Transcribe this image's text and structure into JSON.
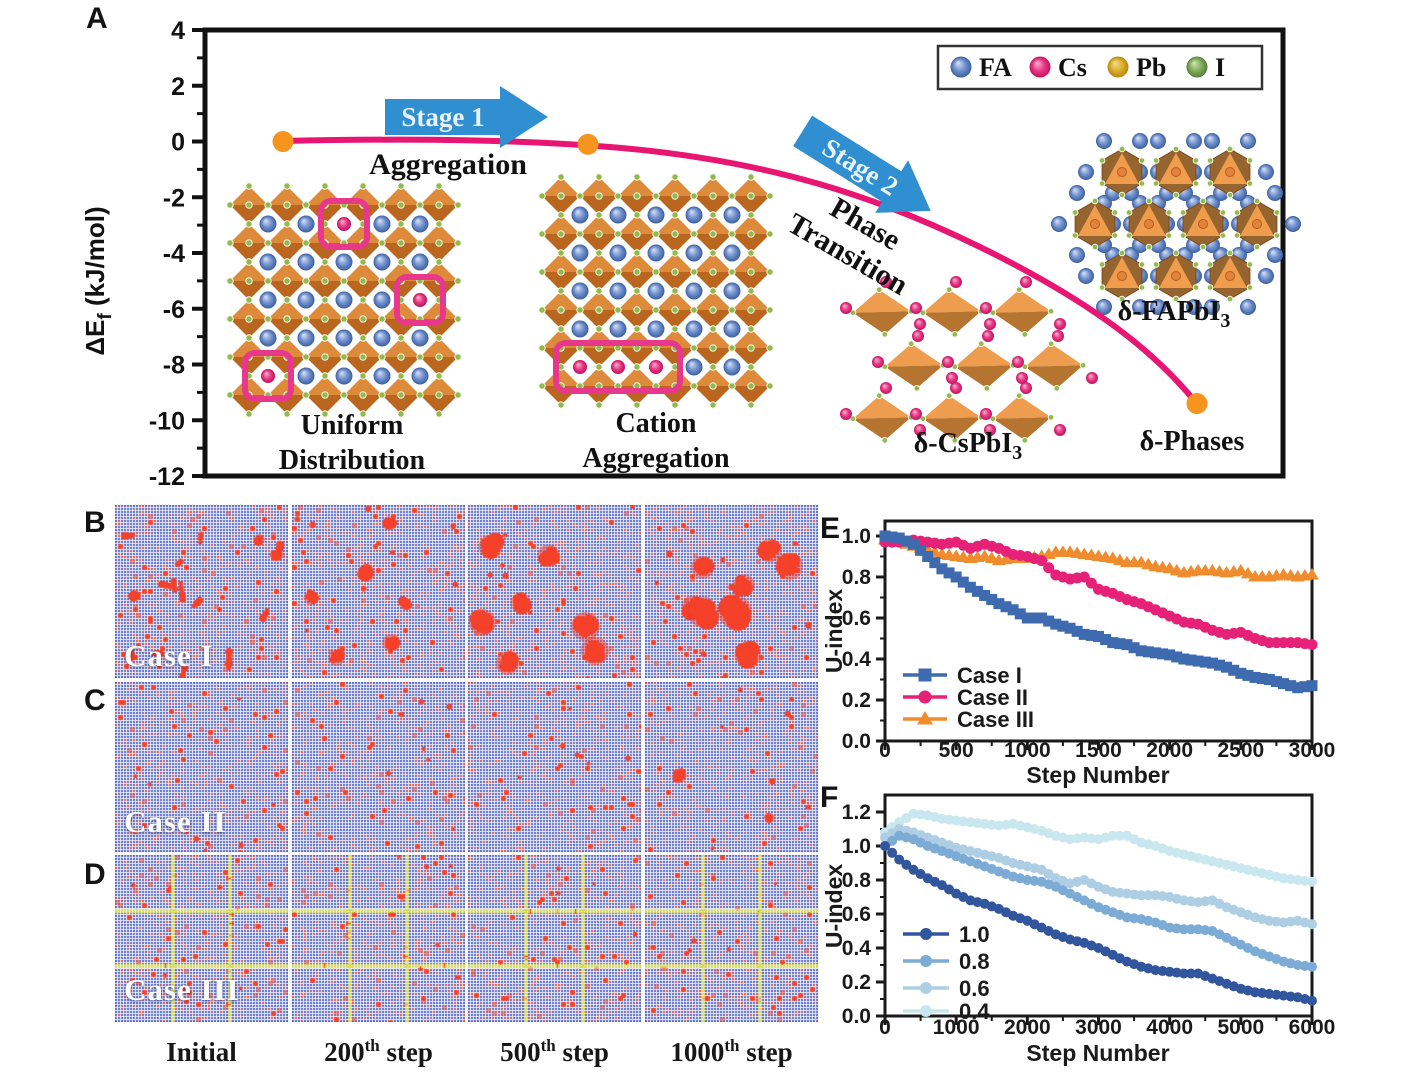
{
  "panelA": {
    "letter": "A",
    "ylabel": {
      "pre": "ΔE",
      "sub": "f",
      "post": " (kJ/mol)"
    },
    "stage1": "Stage 1",
    "stage2": "Stage 2",
    "aggregation": "Aggregation",
    "phase": [
      "Phase",
      "Transition"
    ],
    "uniform": [
      "Uniform",
      "Distribution"
    ],
    "cation": [
      "Cation",
      "Aggregation"
    ],
    "delta_cspbi3": {
      "text": "δ-CsPbI",
      "sub": "3"
    },
    "delta_fapbi3": {
      "text": "δ-FAPbI",
      "sub": "3"
    },
    "delta_phases": "δ-Phases",
    "arrow_color": "#2f8fd0",
    "legend": [
      {
        "label": "FA",
        "color": "#5c7fc0"
      },
      {
        "label": "Cs",
        "color": "#e02672"
      },
      {
        "label": "Pb",
        "color": "#d2a21c"
      },
      {
        "label": "I",
        "color": "#6f9c4a"
      }
    ]
  },
  "panelsBCD": {
    "B": {
      "letter": "B",
      "label": "Case I"
    },
    "C": {
      "letter": "C",
      "label": "Case II"
    },
    "D": {
      "letter": "D",
      "label": "Case III"
    },
    "captions": [
      {
        "num": "Initial",
        "sup": "",
        "word": ""
      },
      {
        "num": "200",
        "sup": "th",
        "word": " step"
      },
      {
        "num": "500",
        "sup": "th",
        "word": " step"
      },
      {
        "num": "1000",
        "sup": "th",
        "word": " step"
      }
    ],
    "tile_colors": {
      "matrix": "#4d61c4",
      "dot_grid": "#ffffff",
      "cluster": "#f5402a",
      "partition": "#d6da57"
    }
  },
  "chart_data": [
    {
      "id": "A",
      "panel_letter": "A",
      "type": "line",
      "ylabel": "ΔEf (kJ/mol)",
      "ylim": [
        -12,
        4
      ],
      "yticks": [
        4,
        2,
        0,
        -2,
        -4,
        -6,
        -8,
        -10,
        -12
      ],
      "curve_color": "#e81573",
      "point_color": "#f5941e",
      "stages": [
        {
          "arrow": "Stage 1",
          "label": "Aggregation"
        },
        {
          "arrow": "Stage 2",
          "label": "Phase Transition"
        }
      ],
      "anchor_points": [
        {
          "label": "Uniform Distribution",
          "dEf": 0
        },
        {
          "label": "Cation Aggregation",
          "dEf": -0.1
        },
        {
          "label": "δ-Phases",
          "dEf": -9.4
        }
      ]
    },
    {
      "id": "E",
      "panel_letter": "E",
      "type": "scatter",
      "xlabel": "Step Number",
      "ylabel": "U-index",
      "xlim": [
        0,
        3000
      ],
      "ylim": [
        0.0,
        1.0
      ],
      "xticks": [
        0,
        500,
        1000,
        1500,
        2000,
        2500,
        3000
      ],
      "yticks": [
        0.0,
        0.2,
        0.4,
        0.6,
        0.8,
        1.0
      ],
      "legend_position": "bottom-left",
      "grid": false,
      "x_step": 100,
      "series": [
        {
          "name": "Case I",
          "marker": "square",
          "color": "#3e6ab0",
          "values": [
            1.0,
            0.99,
            0.96,
            0.9,
            0.84,
            0.8,
            0.75,
            0.71,
            0.67,
            0.64,
            0.6,
            0.6,
            0.57,
            0.55,
            0.52,
            0.51,
            0.48,
            0.47,
            0.44,
            0.43,
            0.42,
            0.4,
            0.39,
            0.38,
            0.36,
            0.33,
            0.31,
            0.3,
            0.28,
            0.26,
            0.27
          ]
        },
        {
          "name": "Case II",
          "marker": "circle",
          "color": "#e62178",
          "values": [
            0.97,
            0.97,
            0.98,
            0.97,
            0.96,
            0.97,
            0.94,
            0.96,
            0.94,
            0.91,
            0.9,
            0.88,
            0.81,
            0.79,
            0.8,
            0.74,
            0.72,
            0.69,
            0.67,
            0.64,
            0.61,
            0.58,
            0.57,
            0.54,
            0.52,
            0.53,
            0.5,
            0.48,
            0.48,
            0.48,
            0.47
          ]
        },
        {
          "name": "Case III",
          "marker": "triangle",
          "color": "#ef8c2d",
          "values": [
            0.98,
            0.97,
            0.95,
            0.93,
            0.91,
            0.9,
            0.89,
            0.9,
            0.88,
            0.89,
            0.89,
            0.9,
            0.92,
            0.92,
            0.91,
            0.9,
            0.89,
            0.87,
            0.87,
            0.85,
            0.84,
            0.82,
            0.83,
            0.83,
            0.82,
            0.83,
            0.8,
            0.8,
            0.81,
            0.8,
            0.81
          ]
        }
      ]
    },
    {
      "id": "F",
      "panel_letter": "F",
      "type": "scatter",
      "xlabel": "Step Number",
      "ylabel": "U-index",
      "xlim": [
        0,
        6000
      ],
      "ylim": [
        0.0,
        1.2
      ],
      "xticks": [
        0,
        1000,
        2000,
        3000,
        4000,
        5000,
        6000
      ],
      "yticks": [
        0.0,
        0.2,
        0.4,
        0.6,
        0.8,
        1.0,
        1.2
      ],
      "legend_position": "middle-left",
      "grid": false,
      "x_step": 200,
      "series": [
        {
          "name": "1.0",
          "marker": "circle",
          "color": "#31569e",
          "values": [
            1.0,
            0.92,
            0.86,
            0.81,
            0.77,
            0.72,
            0.68,
            0.66,
            0.63,
            0.59,
            0.56,
            0.52,
            0.48,
            0.45,
            0.43,
            0.4,
            0.36,
            0.32,
            0.29,
            0.27,
            0.26,
            0.25,
            0.25,
            0.22,
            0.19,
            0.16,
            0.14,
            0.13,
            0.12,
            0.11,
            0.09
          ]
        },
        {
          "name": "0.8",
          "marker": "circle",
          "color": "#7cabd6",
          "values": [
            1.0,
            1.06,
            1.04,
            1.0,
            0.97,
            0.94,
            0.91,
            0.88,
            0.85,
            0.82,
            0.8,
            0.79,
            0.76,
            0.72,
            0.68,
            0.64,
            0.61,
            0.58,
            0.57,
            0.55,
            0.52,
            0.51,
            0.51,
            0.5,
            0.46,
            0.42,
            0.38,
            0.35,
            0.32,
            0.3,
            0.29
          ]
        },
        {
          "name": "0.6",
          "marker": "circle",
          "color": "#aecfe3",
          "values": [
            1.05,
            1.1,
            1.08,
            1.05,
            1.02,
            0.99,
            0.97,
            0.95,
            0.93,
            0.9,
            0.88,
            0.86,
            0.81,
            0.78,
            0.8,
            0.76,
            0.73,
            0.72,
            0.71,
            0.71,
            0.7,
            0.68,
            0.67,
            0.68,
            0.64,
            0.61,
            0.58,
            0.56,
            0.55,
            0.56,
            0.54
          ]
        },
        {
          "name": "0.4",
          "marker": "circle",
          "color": "#c9e7ee",
          "values": [
            1.08,
            1.14,
            1.19,
            1.18,
            1.16,
            1.15,
            1.14,
            1.13,
            1.12,
            1.13,
            1.11,
            1.09,
            1.06,
            1.04,
            1.05,
            1.04,
            1.06,
            1.06,
            1.02,
            1.0,
            0.97,
            0.95,
            0.93,
            0.91,
            0.89,
            0.87,
            0.85,
            0.83,
            0.81,
            0.8,
            0.79
          ]
        }
      ]
    }
  ]
}
